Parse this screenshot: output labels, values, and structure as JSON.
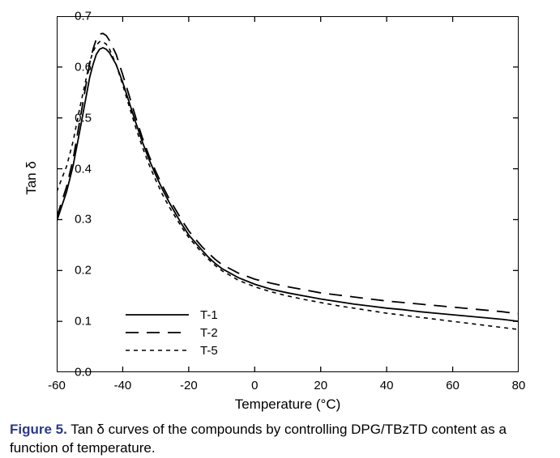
{
  "chart": {
    "type": "line",
    "background_color": "#ffffff",
    "border_color": "#000000",
    "xlabel": "Temperature (°C)",
    "ylabel": "Tan δ",
    "label_fontsize": 17,
    "tick_fontsize": 15,
    "xlim": [
      -60,
      80
    ],
    "ylim": [
      0.0,
      0.7
    ],
    "xtick_step": 20,
    "ytick_step": 0.1,
    "xticks": [
      -60,
      -40,
      -20,
      0,
      20,
      40,
      60,
      80
    ],
    "yticks": [
      0.0,
      0.1,
      0.2,
      0.3,
      0.4,
      0.5,
      0.6,
      0.7
    ],
    "grid": false,
    "tick_inside": true,
    "series": [
      {
        "name": "T-1",
        "color": "#000000",
        "dash": "solid",
        "line_width": 1.8,
        "x": [
          -60,
          -57,
          -55,
          -53,
          -51,
          -50,
          -49,
          -48,
          -47,
          -46,
          -45,
          -44,
          -42,
          -40,
          -38,
          -36,
          -34,
          -32,
          -30,
          -28,
          -26,
          -24,
          -22,
          -20,
          -18,
          -16,
          -14,
          -12,
          -10,
          -5,
          0,
          5,
          10,
          15,
          20,
          25,
          30,
          35,
          40,
          45,
          50,
          55,
          60,
          65,
          70,
          75,
          80
        ],
        "y": [
          0.297,
          0.355,
          0.407,
          0.475,
          0.545,
          0.58,
          0.605,
          0.625,
          0.635,
          0.638,
          0.635,
          0.628,
          0.605,
          0.57,
          0.53,
          0.49,
          0.452,
          0.418,
          0.388,
          0.36,
          0.335,
          0.312,
          0.29,
          0.27,
          0.255,
          0.24,
          0.226,
          0.214,
          0.204,
          0.186,
          0.173,
          0.163,
          0.156,
          0.15,
          0.144,
          0.139,
          0.134,
          0.13,
          0.126,
          0.123,
          0.119,
          0.116,
          0.113,
          0.11,
          0.107,
          0.104,
          0.1
        ]
      },
      {
        "name": "T-2",
        "color": "#000000",
        "dash": "long-dash",
        "line_width": 1.8,
        "x": [
          -60,
          -57,
          -55,
          -53,
          -51,
          -50,
          -49,
          -48,
          -47,
          -46,
          -45,
          -44,
          -42,
          -40,
          -38,
          -36,
          -34,
          -32,
          -30,
          -28,
          -26,
          -24,
          -22,
          -20,
          -18,
          -16,
          -14,
          -12,
          -10,
          -5,
          0,
          5,
          10,
          15,
          20,
          25,
          30,
          35,
          40,
          45,
          50,
          55,
          60,
          65,
          70,
          75,
          80
        ],
        "y": [
          0.305,
          0.365,
          0.42,
          0.495,
          0.57,
          0.608,
          0.635,
          0.655,
          0.665,
          0.666,
          0.662,
          0.652,
          0.625,
          0.585,
          0.543,
          0.5,
          0.46,
          0.425,
          0.395,
          0.367,
          0.342,
          0.32,
          0.298,
          0.278,
          0.262,
          0.247,
          0.234,
          0.222,
          0.212,
          0.195,
          0.183,
          0.175,
          0.168,
          0.162,
          0.156,
          0.152,
          0.148,
          0.144,
          0.14,
          0.137,
          0.134,
          0.131,
          0.128,
          0.125,
          0.122,
          0.119,
          0.115
        ]
      },
      {
        "name": "T-5",
        "color": "#000000",
        "dash": "short-dash",
        "line_width": 1.6,
        "x": [
          -60,
          -57,
          -55,
          -53,
          -51,
          -50,
          -49,
          -48,
          -47,
          -46,
          -45,
          -44,
          -42,
          -40,
          -38,
          -36,
          -34,
          -32,
          -30,
          -28,
          -26,
          -24,
          -22,
          -20,
          -18,
          -16,
          -14,
          -12,
          -10,
          -5,
          0,
          5,
          10,
          15,
          20,
          25,
          30,
          35,
          40,
          45,
          50,
          55,
          60,
          65,
          70,
          75,
          80
        ],
        "y": [
          0.355,
          0.405,
          0.455,
          0.52,
          0.58,
          0.61,
          0.63,
          0.643,
          0.65,
          0.65,
          0.645,
          0.635,
          0.605,
          0.565,
          0.522,
          0.48,
          0.442,
          0.408,
          0.378,
          0.35,
          0.326,
          0.305,
          0.284,
          0.265,
          0.25,
          0.235,
          0.222,
          0.21,
          0.2,
          0.181,
          0.168,
          0.158,
          0.15,
          0.143,
          0.137,
          0.131,
          0.126,
          0.121,
          0.116,
          0.112,
          0.108,
          0.104,
          0.1,
          0.096,
          0.092,
          0.088,
          0.084
        ]
      }
    ],
    "legend": {
      "position": "lower-left",
      "items": [
        "T-1",
        "T-2",
        "T-5"
      ],
      "fontsize": 15
    }
  },
  "caption": {
    "label": "Figure 5.",
    "text": "Tan δ curves of the compounds by controlling DPG/TBzTD content as a function of temperature.",
    "label_color": "#2a3a8a",
    "fontsize": 17
  }
}
